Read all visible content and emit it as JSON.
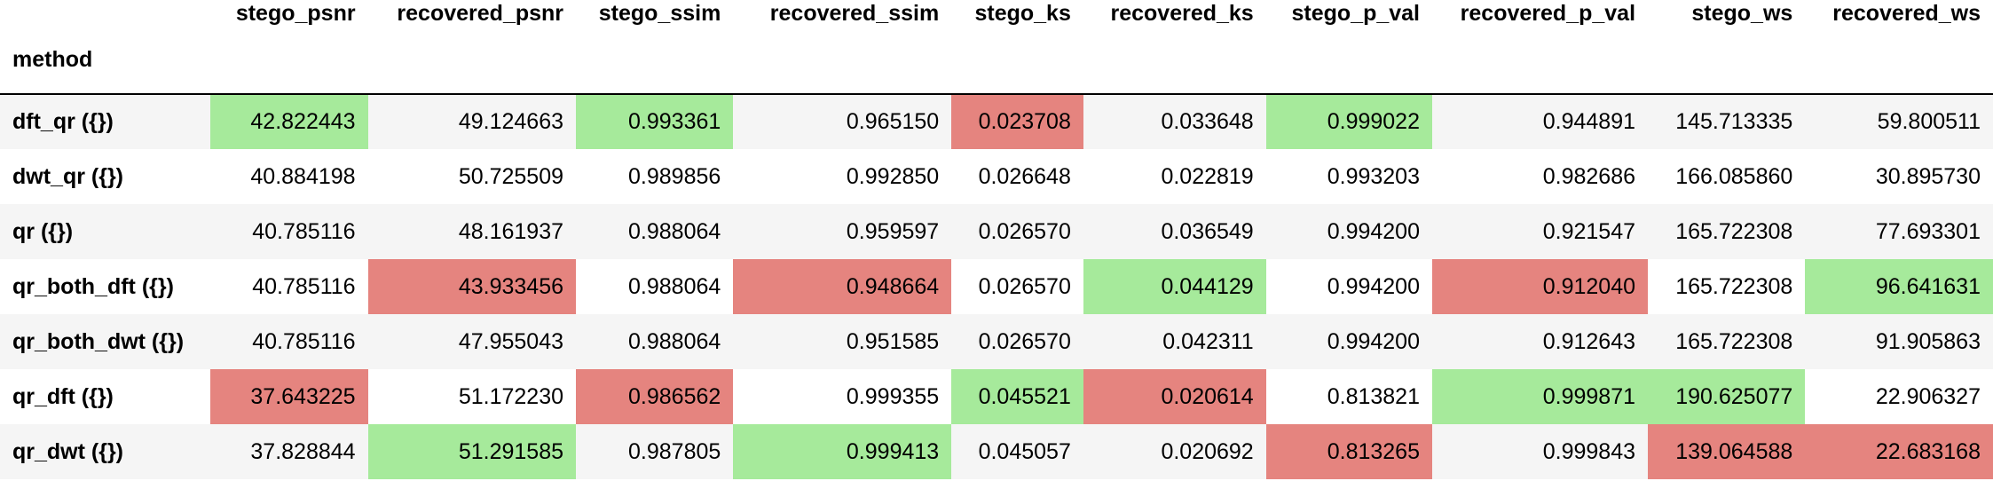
{
  "table": {
    "index_name": "method",
    "columns": [
      "stego_psnr",
      "recovered_psnr",
      "stego_ssim",
      "recovered_ssim",
      "stego_ks",
      "recovered_ks",
      "stego_p_val",
      "recovered_p_val",
      "stego_ws",
      "recovered_ws"
    ],
    "rows": [
      {
        "method": "dft_qr ({})",
        "values": [
          "42.822443",
          "49.124663",
          "0.993361",
          "0.965150",
          "0.023708",
          "0.033648",
          "0.999022",
          "0.944891",
          "145.713335",
          "59.800511"
        ],
        "highlight": [
          "max",
          "",
          "max",
          "",
          "min",
          "",
          "max",
          "",
          "",
          ""
        ]
      },
      {
        "method": "dwt_qr ({})",
        "values": [
          "40.884198",
          "50.725509",
          "0.989856",
          "0.992850",
          "0.026648",
          "0.022819",
          "0.993203",
          "0.982686",
          "166.085860",
          "30.895730"
        ],
        "highlight": [
          "",
          "",
          "",
          "",
          "",
          "",
          "",
          "",
          "",
          ""
        ]
      },
      {
        "method": "qr ({})",
        "values": [
          "40.785116",
          "48.161937",
          "0.988064",
          "0.959597",
          "0.026570",
          "0.036549",
          "0.994200",
          "0.921547",
          "165.722308",
          "77.693301"
        ],
        "highlight": [
          "",
          "",
          "",
          "",
          "",
          "",
          "",
          "",
          "",
          ""
        ]
      },
      {
        "method": "qr_both_dft ({})",
        "values": [
          "40.785116",
          "43.933456",
          "0.988064",
          "0.948664",
          "0.026570",
          "0.044129",
          "0.994200",
          "0.912040",
          "165.722308",
          "96.641631"
        ],
        "highlight": [
          "",
          "min",
          "",
          "min",
          "",
          "max",
          "",
          "min",
          "",
          "max"
        ]
      },
      {
        "method": "qr_both_dwt ({})",
        "values": [
          "40.785116",
          "47.955043",
          "0.988064",
          "0.951585",
          "0.026570",
          "0.042311",
          "0.994200",
          "0.912643",
          "165.722308",
          "91.905863"
        ],
        "highlight": [
          "",
          "",
          "",
          "",
          "",
          "",
          "",
          "",
          "",
          ""
        ]
      },
      {
        "method": "qr_dft ({})",
        "values": [
          "37.643225",
          "51.172230",
          "0.986562",
          "0.999355",
          "0.045521",
          "0.020614",
          "0.813821",
          "0.999871",
          "190.625077",
          "22.906327"
        ],
        "highlight": [
          "min",
          "",
          "min",
          "",
          "max",
          "min",
          "",
          "max",
          "max",
          ""
        ]
      },
      {
        "method": "qr_dwt ({})",
        "values": [
          "37.828844",
          "51.291585",
          "0.987805",
          "0.999413",
          "0.045057",
          "0.020692",
          "0.813265",
          "0.999843",
          "139.064588",
          "22.683168"
        ],
        "highlight": [
          "",
          "max",
          "",
          "max",
          "",
          "",
          "min",
          "",
          "min",
          "min"
        ]
      }
    ]
  },
  "colors": {
    "highlight_max": "#a6ea9b",
    "highlight_min": "#e5847f",
    "row_stripe": "#f5f5f5"
  }
}
